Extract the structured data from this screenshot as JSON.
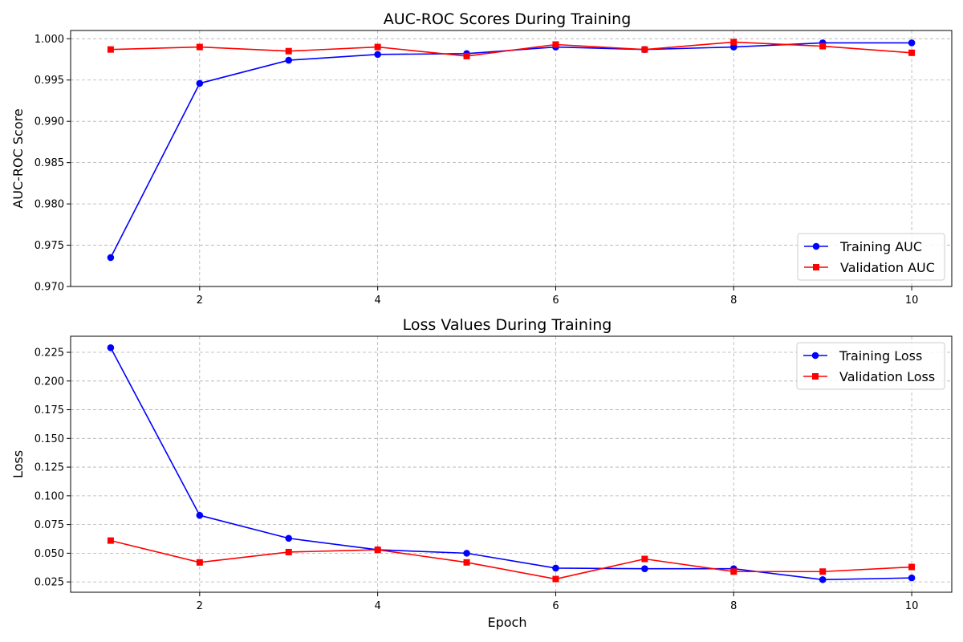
{
  "chart_data": [
    {
      "type": "line",
      "title": "AUC-ROC Scores During Training",
      "xlabel": "",
      "ylabel": "AUC-ROC Score",
      "xlim": [
        0.55,
        10.45
      ],
      "ylim": [
        0.97,
        1.001
      ],
      "xticks": [
        2,
        4,
        6,
        8,
        10
      ],
      "xtick_labels": [
        "2",
        "4",
        "6",
        "8",
        "10"
      ],
      "yticks": [
        0.97,
        0.975,
        0.98,
        0.985,
        0.99,
        0.995,
        1.0
      ],
      "ytick_labels": [
        "0.970",
        "0.975",
        "0.980",
        "0.985",
        "0.990",
        "0.995",
        "1.000"
      ],
      "grid": true,
      "legend_position": "lower-right",
      "x": [
        1,
        2,
        3,
        4,
        5,
        6,
        7,
        8,
        9,
        10
      ],
      "series": [
        {
          "name": "Training AUC",
          "color": "#0000ff",
          "marker": "circle",
          "values": [
            0.9735,
            0.9946,
            0.9974,
            0.9981,
            0.9982,
            0.999,
            0.9987,
            0.999,
            0.9995,
            0.9995
          ]
        },
        {
          "name": "Validation AUC",
          "color": "#ff0000",
          "marker": "square",
          "values": [
            0.9987,
            0.999,
            0.9985,
            0.999,
            0.9979,
            0.9993,
            0.9987,
            0.9996,
            0.9991,
            0.9983
          ]
        }
      ]
    },
    {
      "type": "line",
      "title": "Loss Values During Training",
      "xlabel": "Epoch",
      "ylabel": "Loss",
      "xlim": [
        0.55,
        10.45
      ],
      "ylim": [
        0.016,
        0.239
      ],
      "xticks": [
        2,
        4,
        6,
        8,
        10
      ],
      "xtick_labels": [
        "2",
        "4",
        "6",
        "8",
        "10"
      ],
      "yticks": [
        0.025,
        0.05,
        0.075,
        0.1,
        0.125,
        0.15,
        0.175,
        0.2,
        0.225
      ],
      "ytick_labels": [
        "0.025",
        "0.050",
        "0.075",
        "0.100",
        "0.125",
        "0.150",
        "0.175",
        "0.200",
        "0.225"
      ],
      "grid": true,
      "legend_position": "upper-right",
      "x": [
        1,
        2,
        3,
        4,
        5,
        6,
        7,
        8,
        9,
        10
      ],
      "series": [
        {
          "name": "Training Loss",
          "color": "#0000ff",
          "marker": "circle",
          "values": [
            0.229,
            0.083,
            0.063,
            0.053,
            0.05,
            0.037,
            0.0365,
            0.0365,
            0.027,
            0.0285
          ]
        },
        {
          "name": "Validation Loss",
          "color": "#ff0000",
          "marker": "square",
          "values": [
            0.061,
            0.042,
            0.051,
            0.053,
            0.042,
            0.0275,
            0.045,
            0.034,
            0.034,
            0.038
          ]
        }
      ]
    }
  ]
}
